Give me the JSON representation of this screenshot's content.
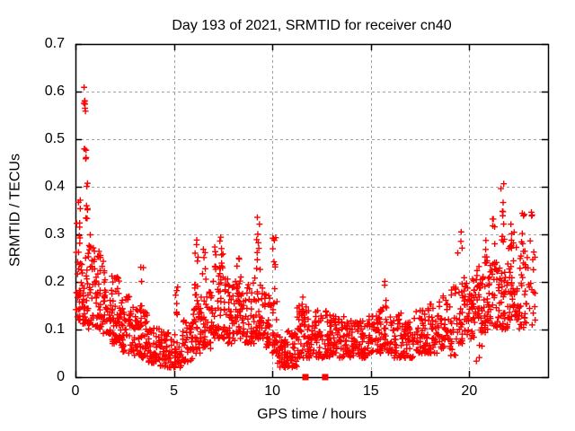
{
  "title": "Day 193 of 2021, SRMTID for receiver cn40",
  "chart_data": {
    "type": "scatter",
    "title": "Day 193 of 2021, SRMTID for receiver cn40",
    "xlabel": "GPS time / hours",
    "ylabel": "SRMTID / TECUs",
    "xlim": [
      0,
      24
    ],
    "ylim": [
      0,
      0.7
    ],
    "xticks": [
      0,
      5,
      10,
      15,
      20
    ],
    "xtick_labels": [
      "0",
      "5",
      "10",
      "15",
      "20"
    ],
    "yticks": [
      0,
      0.1,
      0.2,
      0.3,
      0.4,
      0.5,
      0.6,
      0.7
    ],
    "ytick_labels": [
      "0",
      "0.1",
      "0.2",
      "0.3",
      "0.4",
      "0.5",
      "0.6",
      "0.7"
    ],
    "grid": true,
    "legend": "none",
    "background_color": "#ffffff",
    "border_color": "#000000",
    "grid_color": "#a0a0a0",
    "marker_color": "#ff0000",
    "series": [
      {
        "name": "SRMTID",
        "marker": "plus",
        "color": "#ff0000",
        "bins_format": "[x_start_h, x_end_h, y_min_TECU, y_max_TECU, n_points, spread_exp(optional)]",
        "point_cloud_bins": [
          [
            0.02,
            0.3,
            0.12,
            0.3,
            30
          ],
          [
            0.05,
            0.25,
            0.3,
            0.375,
            6,
            1
          ],
          [
            0.3,
            0.6,
            0.1,
            0.26,
            28
          ],
          [
            0.42,
            0.52,
            0.55,
            0.635,
            7,
            1
          ],
          [
            0.44,
            0.54,
            0.44,
            0.48,
            5,
            1
          ],
          [
            0.5,
            0.62,
            0.3,
            0.42,
            7,
            1
          ],
          [
            0.6,
            0.95,
            0.1,
            0.3,
            32
          ],
          [
            0.95,
            1.35,
            0.1,
            0.27,
            40
          ],
          [
            1.35,
            1.85,
            0.09,
            0.25,
            46
          ],
          [
            1.85,
            2.25,
            0.07,
            0.22,
            50
          ],
          [
            2.25,
            2.75,
            0.05,
            0.17,
            46
          ],
          [
            2.75,
            3.25,
            0.045,
            0.15,
            44
          ],
          [
            3.25,
            3.45,
            0.14,
            0.235,
            6,
            1
          ],
          [
            3.25,
            3.65,
            0.04,
            0.14,
            38
          ],
          [
            3.65,
            4.25,
            0.03,
            0.115,
            44
          ],
          [
            4.25,
            4.85,
            0.02,
            0.095,
            44
          ],
          [
            4.85,
            5.45,
            0.02,
            0.09,
            40
          ],
          [
            5.05,
            5.2,
            0.13,
            0.22,
            7,
            1
          ],
          [
            5.45,
            5.95,
            0.03,
            0.12,
            36
          ],
          [
            5.95,
            6.35,
            0.05,
            0.16,
            34
          ],
          [
            6.05,
            6.25,
            0.16,
            0.295,
            12,
            1
          ],
          [
            6.35,
            6.9,
            0.06,
            0.18,
            44
          ],
          [
            6.45,
            6.65,
            0.18,
            0.27,
            6,
            1
          ],
          [
            6.9,
            7.6,
            0.08,
            0.24,
            58
          ],
          [
            6.95,
            7.15,
            0.22,
            0.275,
            5,
            1
          ],
          [
            7.25,
            7.5,
            0.2,
            0.305,
            8,
            1
          ],
          [
            7.6,
            8.1,
            0.07,
            0.21,
            44
          ],
          [
            8.1,
            8.6,
            0.08,
            0.22,
            44
          ],
          [
            8.2,
            8.4,
            0.2,
            0.255,
            4,
            1
          ],
          [
            8.6,
            9.1,
            0.07,
            0.2,
            40
          ],
          [
            9.1,
            9.5,
            0.08,
            0.22,
            34
          ],
          [
            9.2,
            9.4,
            0.22,
            0.348,
            10,
            1
          ],
          [
            9.5,
            9.95,
            0.06,
            0.18,
            34
          ],
          [
            9.95,
            10.25,
            0.05,
            0.16,
            24
          ],
          [
            9.98,
            10.18,
            0.18,
            0.31,
            9,
            1
          ],
          [
            10.25,
            10.75,
            0.02,
            0.09,
            44
          ],
          [
            10.75,
            11.25,
            0.02,
            0.1,
            44
          ],
          [
            11.25,
            11.85,
            0.04,
            0.15,
            50
          ],
          [
            11.5,
            11.7,
            0.13,
            0.172,
            5,
            1
          ],
          [
            11.85,
            12.45,
            0.04,
            0.14,
            50
          ],
          [
            12.45,
            13.05,
            0.04,
            0.14,
            48
          ],
          [
            13.05,
            13.65,
            0.04,
            0.13,
            46
          ],
          [
            13.65,
            14.25,
            0.04,
            0.125,
            46
          ],
          [
            14.25,
            14.85,
            0.04,
            0.13,
            46
          ],
          [
            14.85,
            15.45,
            0.05,
            0.14,
            46
          ],
          [
            15.45,
            16.05,
            0.05,
            0.15,
            44
          ],
          [
            15.6,
            15.8,
            0.14,
            0.205,
            4,
            1
          ],
          [
            16.05,
            16.65,
            0.04,
            0.135,
            44
          ],
          [
            16.65,
            17.25,
            0.04,
            0.13,
            44
          ],
          [
            17.25,
            17.85,
            0.05,
            0.14,
            44
          ],
          [
            17.85,
            18.45,
            0.05,
            0.155,
            44
          ],
          [
            18.45,
            19.05,
            0.06,
            0.175,
            40
          ],
          [
            19.05,
            19.65,
            0.07,
            0.2,
            40
          ],
          [
            19.35,
            19.75,
            0.2,
            0.315,
            5,
            1
          ],
          [
            19.0,
            19.5,
            0.035,
            0.06,
            4,
            1
          ],
          [
            19.65,
            20.25,
            0.08,
            0.22,
            46
          ],
          [
            20.25,
            20.85,
            0.09,
            0.24,
            48
          ],
          [
            20.35,
            20.75,
            0.03,
            0.07,
            4,
            1
          ],
          [
            20.85,
            21.45,
            0.1,
            0.25,
            48
          ],
          [
            20.8,
            20.95,
            0.22,
            0.3,
            6,
            1
          ],
          [
            21.15,
            21.4,
            0.26,
            0.365,
            5,
            1
          ],
          [
            21.45,
            21.95,
            0.1,
            0.24,
            40
          ],
          [
            21.6,
            21.8,
            0.25,
            0.41,
            11,
            1
          ],
          [
            21.95,
            22.5,
            0.12,
            0.28,
            44
          ],
          [
            22.0,
            22.3,
            0.26,
            0.335,
            8,
            1
          ],
          [
            22.5,
            23.0,
            0.1,
            0.26,
            32
          ],
          [
            22.6,
            22.85,
            0.26,
            0.35,
            8,
            1
          ],
          [
            23.0,
            23.35,
            0.1,
            0.3,
            16,
            1
          ],
          [
            23.1,
            23.3,
            0.3,
            0.35,
            3,
            1
          ]
        ]
      },
      {
        "name": "flagged-intervals",
        "marker": "filled-square",
        "color": "#ff0000",
        "points": [
          [
            11.68,
            0
          ],
          [
            12.68,
            0
          ]
        ]
      }
    ]
  }
}
